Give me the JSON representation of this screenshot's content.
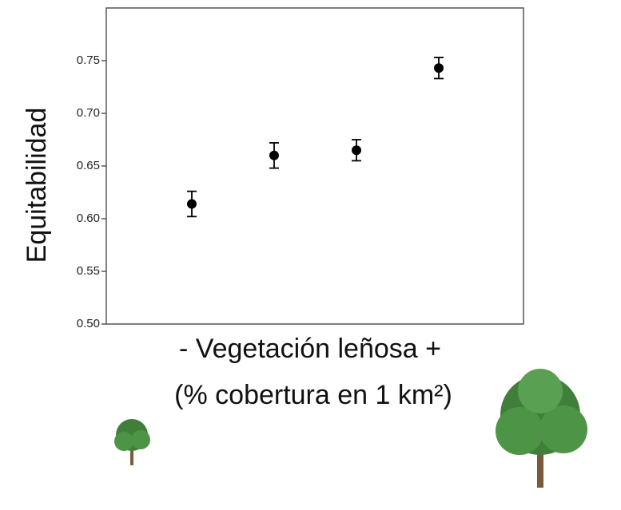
{
  "chart_data": {
    "type": "errorbar",
    "y_label": "Equitabilidad",
    "x_label": [
      "-  Vegetación leñosa +",
      "(% cobertura en 1 km²)"
    ],
    "categories": [
      null,
      null,
      null,
      null
    ],
    "values": [
      0.614,
      0.66,
      0.665,
      0.743
    ],
    "errors": [
      0.012,
      0.012,
      0.01,
      0.01
    ],
    "color": "#000000",
    "ylim": [
      0.5,
      0.8
    ],
    "yticks": [
      {
        "value": 0.5,
        "label": "0.50"
      },
      0.55,
      {
        "value": 0.6,
        "label": "0.60"
      },
      0.65,
      {
        "value": 0.7,
        "label": "0.70"
      },
      0.75
    ]
  }
}
